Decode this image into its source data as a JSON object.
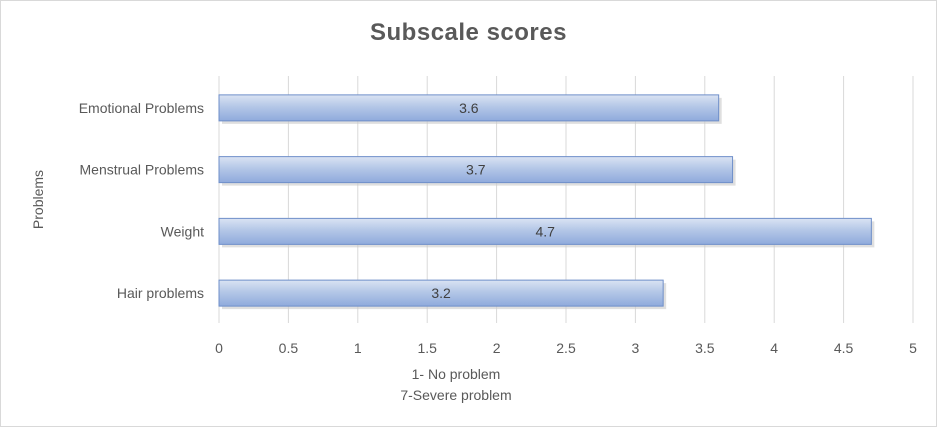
{
  "chart_data": {
    "type": "bar",
    "orientation": "horizontal",
    "title": "Subscale scores",
    "categories": [
      "Emotional Problems",
      "Menstrual Problems",
      "Weight",
      "Hair problems"
    ],
    "values": [
      3.6,
      3.7,
      4.7,
      3.2
    ],
    "data_labels": [
      "3.6",
      "3.7",
      "4.7",
      "3.2"
    ],
    "xlim": [
      0,
      5
    ],
    "x_ticks": [
      0,
      0.5,
      1,
      1.5,
      2,
      2.5,
      3,
      3.5,
      4,
      4.5,
      5
    ],
    "x_tick_labels": [
      "0",
      "0.5",
      "1",
      "1.5",
      "2",
      "2.5",
      "3",
      "3.5",
      "4",
      "4.5",
      "5"
    ],
    "xlabel_lines": [
      "1- No problem",
      "7-Severe problem"
    ],
    "ylabel": "Problems",
    "grid": "vertical",
    "legend": "none",
    "bar_color": "#b4c7e7",
    "bar_color_light": "#dae3f3",
    "bar_color_dark": "#8faadc",
    "bar_border": "#6f8fc9",
    "grid_color": "#d9d9d9",
    "text_color": "#595959"
  }
}
